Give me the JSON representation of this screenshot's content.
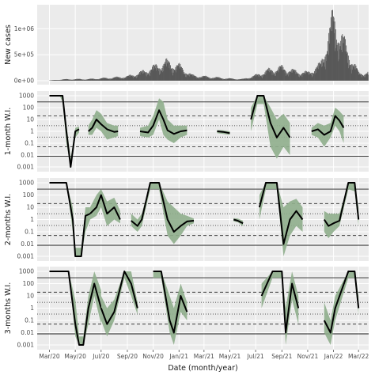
{
  "chart_data": [
    {
      "type": "bar",
      "ylabel": "New cases",
      "ylim": [
        0,
        1400000
      ],
      "ytick_labels": [
        "0e+00",
        "5e+05",
        "1e+06"
      ],
      "ytick_values": [
        0,
        500000,
        1000000
      ],
      "x": [
        "2020-03",
        "2020-04",
        "2020-05",
        "2020-06",
        "2020-07",
        "2020-08",
        "2020-09",
        "2020-10",
        "2020-11",
        "2020-12",
        "2021-01",
        "2021-02",
        "2021-03",
        "2021-04",
        "2021-05",
        "2021-06",
        "2021-07",
        "2021-08",
        "2021-09",
        "2021-10",
        "2021-11",
        "2021-12",
        "2022-01",
        "2022-02",
        "2022-03"
      ],
      "values": [
        5000,
        25000,
        30000,
        30000,
        45000,
        60000,
        80000,
        150000,
        250000,
        350000,
        280000,
        100000,
        80000,
        60000,
        40000,
        30000,
        100000,
        200000,
        250000,
        180000,
        150000,
        300000,
        1200000,
        600000,
        150000
      ],
      "grid": true
    },
    {
      "type": "line",
      "ylabel": "1-month W.I.",
      "scale": "log",
      "ytick_labels": [
        "1000",
        "100",
        "10",
        "1",
        "0.1",
        "0.01",
        "0.001"
      ],
      "ytick_values": [
        1000,
        100,
        10,
        1,
        0.1,
        0.01,
        0.001
      ],
      "reference_lines": {
        "solid": [
          300,
          0.008
        ],
        "dashed": [
          20,
          0.05
        ],
        "dotted": [
          3,
          0.33
        ]
      },
      "band_color": "#8fae8c",
      "line_color": "#000000",
      "segments": [
        {
          "x": [
            "2020-03-01",
            "2020-03-25",
            "2020-04-01",
            "2020-04-10",
            "2020-04-20",
            "2020-05-01",
            "2020-05-10"
          ],
          "y": [
            1000,
            1000,
            1000,
            1,
            0.001,
            1,
            1.5
          ],
          "lo": [
            1000,
            1000,
            300,
            0.1,
            0.001,
            0.3,
            0.8
          ],
          "hi": [
            1000,
            1000,
            1000,
            5,
            0.005,
            2,
            2.5
          ]
        },
        {
          "x": [
            "2020-06-01",
            "2020-06-10",
            "2020-06-20",
            "2020-07-01",
            "2020-07-15",
            "2020-08-01",
            "2020-08-10"
          ],
          "y": [
            1,
            2,
            10,
            4,
            1.5,
            0.9,
            1
          ],
          "lo": [
            0.5,
            0.5,
            2,
            1,
            0.2,
            0.3,
            0.4
          ],
          "hi": [
            3,
            10,
            60,
            30,
            5,
            3,
            3
          ]
        },
        {
          "x": [
            "2020-10-01",
            "2020-10-20",
            "2020-11-01",
            "2020-11-15",
            "2020-11-25",
            "2020-12-05",
            "2020-12-20",
            "2021-01-05",
            "2021-01-20"
          ],
          "y": [
            1,
            0.8,
            3,
            60,
            10,
            1.2,
            0.6,
            1,
            1.2
          ],
          "lo": [
            0.4,
            0.3,
            0.5,
            10,
            0.5,
            0.2,
            0.1,
            0.3,
            0.5
          ],
          "hi": [
            2,
            3,
            20,
            600,
            300,
            10,
            3,
            3,
            3
          ]
        },
        {
          "x": [
            "2021-04-01",
            "2021-04-15",
            "2021-05-01"
          ],
          "y": [
            1,
            0.9,
            0.7
          ],
          "lo": [
            0.7,
            0.6,
            0.5
          ],
          "hi": [
            1.3,
            1.2,
            1.0
          ]
        },
        {
          "x": [
            "2021-06-20",
            "2021-07-05",
            "2021-07-20",
            "2021-08-05",
            "2021-08-20",
            "2021-09-05",
            "2021-09-20"
          ],
          "y": [
            10,
            1000,
            1000,
            5,
            0.3,
            2,
            0.3
          ],
          "lo": [
            1,
            200,
            200,
            0.05,
            0.005,
            0.05,
            0.01
          ],
          "hi": [
            100,
            1000,
            1000,
            100,
            10,
            30,
            5
          ]
        },
        {
          "x": [
            "2021-11-10",
            "2021-11-25",
            "2021-12-10",
            "2021-12-25",
            "2022-01-05",
            "2022-01-15",
            "2022-01-25"
          ],
          "y": [
            1,
            1.5,
            0.5,
            1,
            20,
            8,
            2
          ],
          "lo": [
            0.5,
            0.3,
            0.05,
            0.3,
            3,
            1,
            0.1
          ],
          "hi": [
            2,
            5,
            3,
            5,
            100,
            50,
            20
          ]
        }
      ]
    },
    {
      "type": "line",
      "ylabel": "2-months W.I.",
      "scale": "log",
      "ytick_labels": [
        "1000",
        "100",
        "10",
        "1",
        "0.1",
        "0.01",
        "0.001"
      ],
      "ytick_values": [
        1000,
        100,
        10,
        1,
        0.1,
        0.01,
        0.001
      ],
      "reference_lines": {
        "solid": [
          300,
          0.008
        ],
        "dashed": [
          20,
          0.05
        ],
        "dotted": [
          3,
          0.33
        ]
      },
      "band_color": "#8fae8c",
      "line_color": "#000000",
      "segments": [
        {
          "x": [
            "2020-03-01",
            "2020-04-10",
            "2020-04-25",
            "2020-05-01",
            "2020-05-15",
            "2020-05-25",
            "2020-06-05"
          ],
          "y": [
            1000,
            1000,
            1,
            0.001,
            0.001,
            2,
            3
          ],
          "lo": [
            1000,
            1000,
            0.1,
            0.001,
            0.001,
            0.1,
            1
          ],
          "hi": [
            1000,
            1000,
            10,
            0.005,
            0.005,
            10,
            10
          ]
        },
        {
          "x": [
            "2020-06-05",
            "2020-06-20",
            "2020-07-01",
            "2020-07-15",
            "2020-08-01",
            "2020-08-15"
          ],
          "y": [
            3,
            10,
            100,
            3,
            10,
            1
          ],
          "lo": [
            1,
            2,
            10,
            0.3,
            1,
            0.5
          ],
          "hi": [
            10,
            100,
            300,
            30,
            60,
            5
          ]
        },
        {
          "x": [
            "2020-09-10",
            "2020-09-25",
            "2020-10-05",
            "2020-10-25",
            "2020-11-15",
            "2020-12-05",
            "2020-12-20",
            "2021-01-05",
            "2021-01-20",
            "2021-02-05"
          ],
          "y": [
            0.8,
            0.3,
            1,
            1000,
            1000,
            1,
            0.1,
            0.3,
            0.7,
            0.8
          ],
          "lo": [
            0.3,
            0.1,
            0.3,
            300,
            300,
            0.05,
            0.01,
            0.05,
            0.3,
            0.5
          ],
          "hi": [
            3,
            1,
            3,
            1000,
            1000,
            30,
            10,
            3,
            2,
            1.2
          ]
        },
        {
          "x": [
            "2021-05-10",
            "2021-05-20",
            "2021-06-01"
          ],
          "y": [
            1,
            0.8,
            0.5
          ],
          "lo": [
            0.7,
            0.6,
            0.3
          ],
          "hi": [
            1.3,
            1.2,
            0.8
          ]
        },
        {
          "x": [
            "2021-07-10",
            "2021-07-25",
            "2021-08-20",
            "2021-09-05",
            "2021-09-20",
            "2021-10-05",
            "2021-10-20"
          ],
          "y": [
            10,
            1000,
            1000,
            0.01,
            1,
            5,
            1
          ],
          "lo": [
            1,
            300,
            300,
            0.001,
            0.05,
            0.3,
            0.1
          ],
          "hi": [
            100,
            1000,
            1000,
            10,
            30,
            50,
            10
          ]
        },
        {
          "x": [
            "2021-12-10",
            "2021-12-20",
            "2022-01-01",
            "2022-01-15",
            "2022-02-05",
            "2022-02-20",
            "2022-03-01"
          ],
          "y": [
            1,
            0.3,
            0.5,
            0.8,
            1000,
            1000,
            1
          ],
          "lo": [
            0.1,
            0.03,
            0.1,
            0.3,
            300,
            200,
            0.3
          ],
          "hi": [
            5,
            3,
            3,
            3,
            1000,
            1000,
            10
          ]
        }
      ]
    },
    {
      "type": "line",
      "ylabel": "3-months W.I.",
      "scale": "log",
      "ytick_labels": [
        "1000",
        "100",
        "10",
        "1",
        "0.1",
        "0.01",
        "0.001"
      ],
      "ytick_values": [
        1000,
        100,
        10,
        1,
        0.1,
        0.01,
        0.001
      ],
      "reference_lines": {
        "solid": [
          300,
          0.008
        ],
        "dashed": [
          20,
          0.05
        ],
        "dotted": [
          3,
          0.33
        ]
      },
      "band_color": "#8fae8c",
      "line_color": "#000000",
      "segments": [
        {
          "x": [
            "2020-03-01",
            "2020-04-15",
            "2020-05-01",
            "2020-05-10",
            "2020-05-20",
            "2020-06-01",
            "2020-06-15",
            "2020-07-01"
          ],
          "y": [
            1000,
            1000,
            0.05,
            0.001,
            0.001,
            1,
            100,
            1
          ],
          "lo": [
            1000,
            1000,
            0.005,
            0.001,
            0.001,
            0.05,
            10,
            0.05
          ],
          "hi": [
            1000,
            1000,
            5,
            0.005,
            0.005,
            10,
            1000,
            30
          ]
        },
        {
          "x": [
            "2020-07-01",
            "2020-07-15",
            "2020-08-01",
            "2020-08-25",
            "2020-09-10",
            "2020-09-25"
          ],
          "y": [
            1,
            0.05,
            0.5,
            1000,
            100,
            1
          ],
          "lo": [
            0.1,
            0.005,
            0.1,
            300,
            10,
            0.3
          ],
          "hi": [
            10,
            1,
            5,
            1000,
            1000,
            3
          ]
        },
        {
          "x": [
            "2020-11-01",
            "2020-11-20",
            "2020-12-10",
            "2020-12-20",
            "2021-01-05",
            "2021-01-20"
          ],
          "y": [
            1000,
            1000,
            0.1,
            0.01,
            10,
            0.5
          ],
          "lo": [
            300,
            300,
            0.01,
            0.001,
            0.5,
            0.1
          ],
          "hi": [
            1000,
            1000,
            10,
            1,
            100,
            3
          ]
        },
        {
          "x": [
            "2021-07-15",
            "2021-08-10",
            "2021-09-01",
            "2021-09-10",
            "2021-09-25",
            "2021-10-10"
          ],
          "y": [
            10,
            1000,
            1000,
            0.01,
            100,
            1
          ],
          "lo": [
            1,
            300,
            300,
            0.001,
            5,
            0.05
          ],
          "hi": [
            100,
            1000,
            1000,
            1,
            1000,
            10
          ]
        },
        {
          "x": [
            "2021-12-10",
            "2021-12-25",
            "2022-01-05",
            "2022-02-05",
            "2022-02-20",
            "2022-03-01"
          ],
          "y": [
            0.1,
            0.01,
            1,
            1000,
            1000,
            1
          ],
          "lo": [
            0.01,
            0.001,
            0.1,
            300,
            300,
            0.3
          ],
          "hi": [
            3,
            0.1,
            10,
            1000,
            1000,
            10
          ]
        }
      ]
    }
  ],
  "x_axis": {
    "label": "Date (month/year)",
    "range": [
      "2020-02-01",
      "2022-03-25"
    ],
    "tick_dates": [
      "2020-03-01",
      "2020-05-01",
      "2020-07-01",
      "2020-09-01",
      "2020-11-01",
      "2021-01-01",
      "2021-03-01",
      "2021-05-01",
      "2021-07-01",
      "2021-09-01",
      "2021-11-01",
      "2022-01-01",
      "2022-03-01"
    ],
    "tick_labels": [
      "Mar/20",
      "May/20",
      "Jul/20",
      "Sep/20",
      "Nov/20",
      "Jan/21",
      "Mar/21",
      "May/21",
      "Jul/21",
      "Sep/21",
      "Nov/21",
      "Jan/22",
      "Mar/22"
    ]
  },
  "colors": {
    "panel_background": "#ebebeb",
    "grid_major": "#ffffff",
    "bar_color": "#595959",
    "band": "#8fae8c",
    "line": "#000000"
  }
}
